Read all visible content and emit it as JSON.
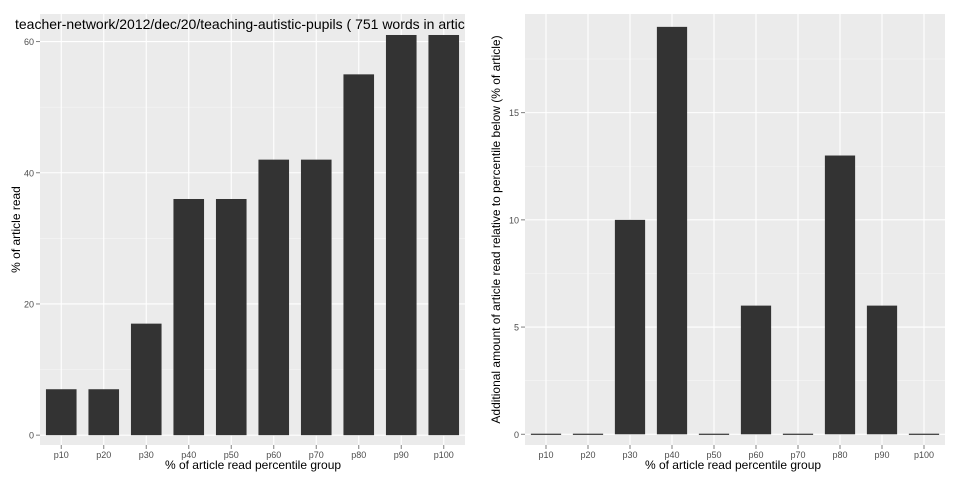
{
  "chart_data": [
    {
      "type": "bar",
      "title": "teacher-network/2012/dec/20/teaching-autistic-pupils ( 751 words in artic",
      "xlabel": "% of article read percentile group",
      "ylabel": "% of article read",
      "categories": [
        "p10",
        "p20",
        "p30",
        "p40",
        "p50",
        "p60",
        "p70",
        "p80",
        "p90",
        "p100"
      ],
      "values": [
        7,
        7,
        17,
        36,
        36,
        42,
        42,
        55,
        61,
        61
      ],
      "yticks": [
        0,
        20,
        40,
        60
      ],
      "ylim": [
        -1.5,
        64.2
      ],
      "grid": true,
      "colors": {
        "bar": "#333333",
        "panel": "#ebebeb",
        "grid": "#ffffff"
      }
    },
    {
      "type": "bar",
      "title": "",
      "xlabel": "% of article read percentile group",
      "ylabel": "Additional amount of article read relative to percentile below (% of article)",
      "categories": [
        "p10",
        "p20",
        "p30",
        "p40",
        "p50",
        "p60",
        "p70",
        "p80",
        "p90",
        "p100"
      ],
      "values": [
        0,
        0,
        10,
        19,
        0,
        6,
        0,
        13,
        6,
        0
      ],
      "yticks": [
        0,
        5,
        10,
        15
      ],
      "ylim": [
        -0.5,
        19.6
      ],
      "grid": true,
      "colors": {
        "bar": "#333333",
        "panel": "#ebebeb",
        "grid": "#ffffff"
      }
    }
  ]
}
